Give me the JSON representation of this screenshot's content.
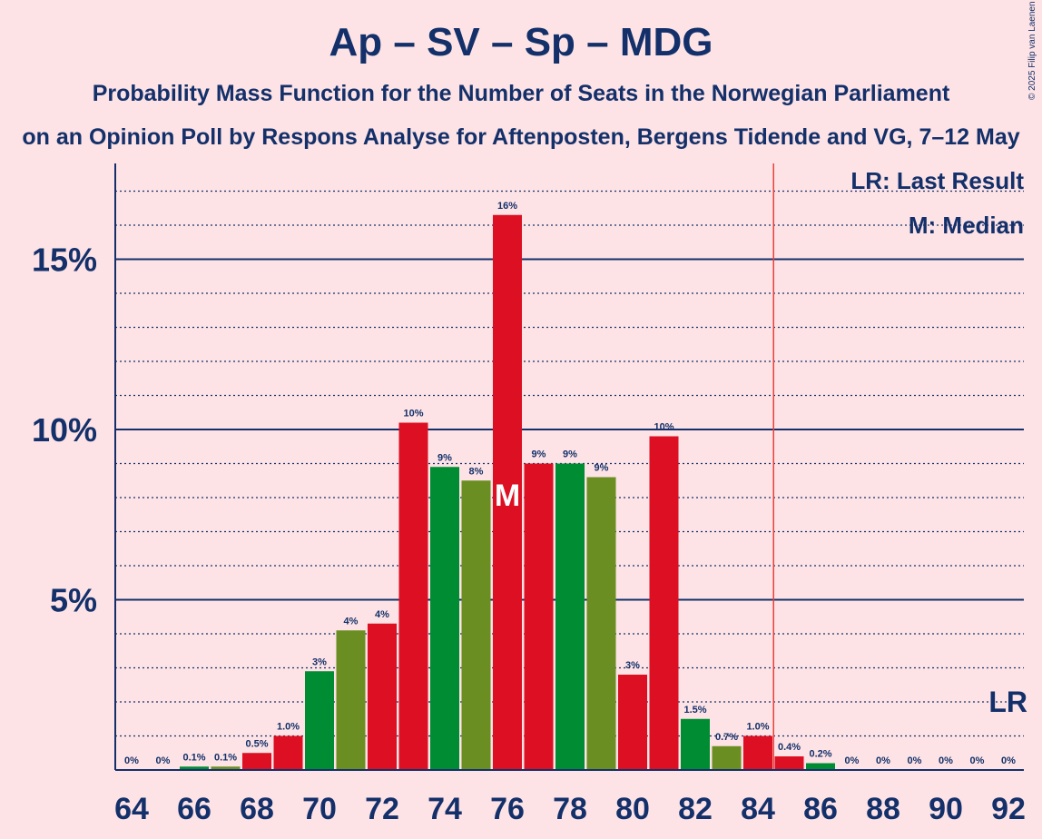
{
  "title": "Ap – SV – Sp – MDG",
  "subtitle": "Probability Mass Function for the Number of Seats in the Norwegian Parliament",
  "subtitle2": "on an Opinion Poll by Respons Analyse for Aftenposten, Bergens Tidende and VG, 7–12 May",
  "copyright": "© 2025 Filip van Laenen",
  "legend": {
    "lr": "LR: Last Result",
    "m": "M: Median"
  },
  "colors": {
    "background": "#fde3e5",
    "text": "#13306a",
    "red": "#dc0f23",
    "green": "#008c32",
    "olive": "#6b8e23",
    "lr_line": "#e8413c"
  },
  "chart_data": {
    "type": "bar",
    "x": [
      64,
      65,
      66,
      67,
      68,
      69,
      70,
      71,
      72,
      73,
      74,
      75,
      76,
      77,
      78,
      79,
      80,
      81,
      82,
      83,
      84,
      85,
      86,
      87,
      88,
      89,
      90,
      91,
      92
    ],
    "values": [
      0,
      0,
      0.1,
      0.1,
      0.5,
      1.0,
      2.9,
      4.1,
      4.3,
      10.2,
      8.9,
      8.5,
      16.3,
      9.0,
      9.0,
      8.6,
      2.8,
      9.8,
      1.5,
      0.7,
      1.0,
      0.4,
      0.2,
      0,
      0,
      0,
      0,
      0,
      0
    ],
    "labels": [
      "0%",
      "0%",
      "0.1%",
      "0.1%",
      "0.5%",
      "1.0%",
      "3%",
      "4%",
      "4%",
      "10%",
      "9%",
      "8%",
      "16%",
      "9%",
      "9%",
      "9%",
      "3%",
      "10%",
      "1.5%",
      "0.7%",
      "1.0%",
      "0.4%",
      "0.2%",
      "0%",
      "0%",
      "0%",
      "0%",
      "0%",
      "0%"
    ],
    "bar_colors": [
      "red",
      "red",
      "green",
      "olive",
      "red",
      "red",
      "green",
      "olive",
      "red",
      "red",
      "green",
      "olive",
      "red",
      "red",
      "green",
      "olive",
      "red",
      "red",
      "green",
      "olive",
      "red",
      "red",
      "green",
      "olive",
      "red",
      "red",
      "green",
      "olive",
      "red"
    ],
    "x_ticks": [
      "64",
      "66",
      "68",
      "70",
      "72",
      "74",
      "76",
      "78",
      "80",
      "82",
      "84",
      "86",
      "88",
      "90",
      "92"
    ],
    "y_ticks": [
      {
        "value": 5,
        "label": "5%"
      },
      {
        "value": 10,
        "label": "10%"
      },
      {
        "value": 15,
        "label": "15%"
      }
    ],
    "ylim": [
      0,
      17.5
    ],
    "median": 76,
    "median_label": "M",
    "last_result": 85,
    "last_result_label": "LR",
    "grid": true
  }
}
